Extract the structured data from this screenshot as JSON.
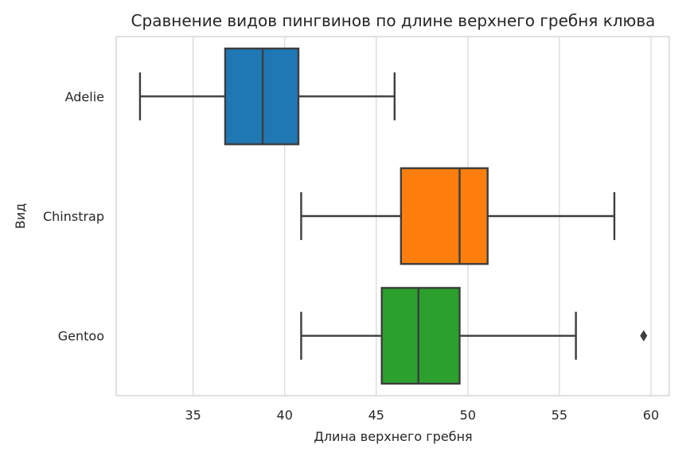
{
  "chart_data": {
    "type": "boxplot",
    "orientation": "horizontal",
    "title": "Сравнение видов пингвинов по длине верхнего гребня клюва",
    "xlabel": "Длина верхнего гребня",
    "ylabel": "Вид",
    "xlim": [
      30.8,
      61.0
    ],
    "xticks": [
      35,
      40,
      45,
      50,
      55,
      60
    ],
    "grid": "vertical",
    "series": [
      {
        "category": "Adelie",
        "color": "#1f77b4",
        "whisker_low": 32.1,
        "q1": 36.75,
        "median": 38.8,
        "q3": 40.75,
        "whisker_high": 46.0,
        "outliers": []
      },
      {
        "category": "Chinstrap",
        "color": "#ff7f0e",
        "whisker_low": 40.9,
        "q1": 46.35,
        "median": 49.55,
        "q3": 51.08,
        "whisker_high": 58.0,
        "outliers": []
      },
      {
        "category": "Gentoo",
        "color": "#2ca02c",
        "whisker_low": 40.9,
        "q1": 45.3,
        "median": 47.3,
        "q3": 49.55,
        "whisker_high": 55.9,
        "outliers": [
          59.6
        ]
      }
    ]
  }
}
